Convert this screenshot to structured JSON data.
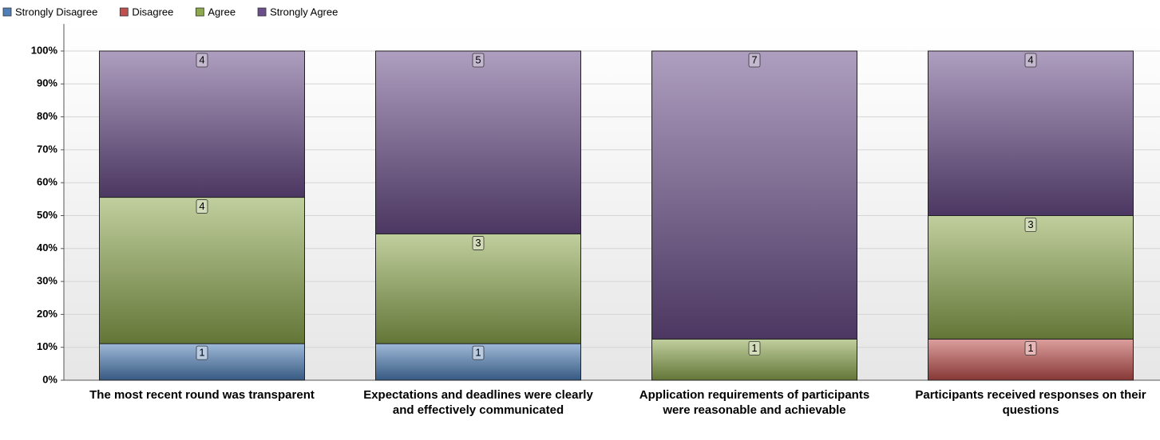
{
  "chart_data": {
    "type": "bar",
    "stacked": "percent",
    "categories": [
      "The most recent round was transparent",
      "Expectations and deadlines were clearly and effectively communicated",
      "Application requirements of participants were reasonable and achievable",
      "Participants received responses on their questions"
    ],
    "series": [
      {
        "name": "Strongly Disagree",
        "color": "#4f7fb8",
        "values": [
          1,
          1,
          0,
          0
        ]
      },
      {
        "name": "Disagree",
        "color": "#c0504d",
        "values": [
          0,
          0,
          0,
          1
        ]
      },
      {
        "name": "Agree",
        "color": "#8ea84f",
        "values": [
          4,
          3,
          1,
          3
        ]
      },
      {
        "name": "Strongly Agree",
        "color": "#6b4f8a",
        "values": [
          4,
          5,
          7,
          4
        ]
      }
    ],
    "ylim": [
      0,
      100
    ],
    "yticks": [
      {
        "value": 0,
        "label": "0%"
      },
      {
        "value": 10,
        "label": "10%"
      },
      {
        "value": 20,
        "label": "20%"
      },
      {
        "value": 30,
        "label": "30%"
      },
      {
        "value": 40,
        "label": "40%"
      },
      {
        "value": 50,
        "label": "50%"
      },
      {
        "value": 60,
        "label": "60%"
      },
      {
        "value": 70,
        "label": "70%"
      },
      {
        "value": 80,
        "label": "80%"
      },
      {
        "value": 90,
        "label": "90%"
      },
      {
        "value": 100,
        "label": "100%"
      }
    ],
    "grid": true,
    "legend": "top-left"
  }
}
